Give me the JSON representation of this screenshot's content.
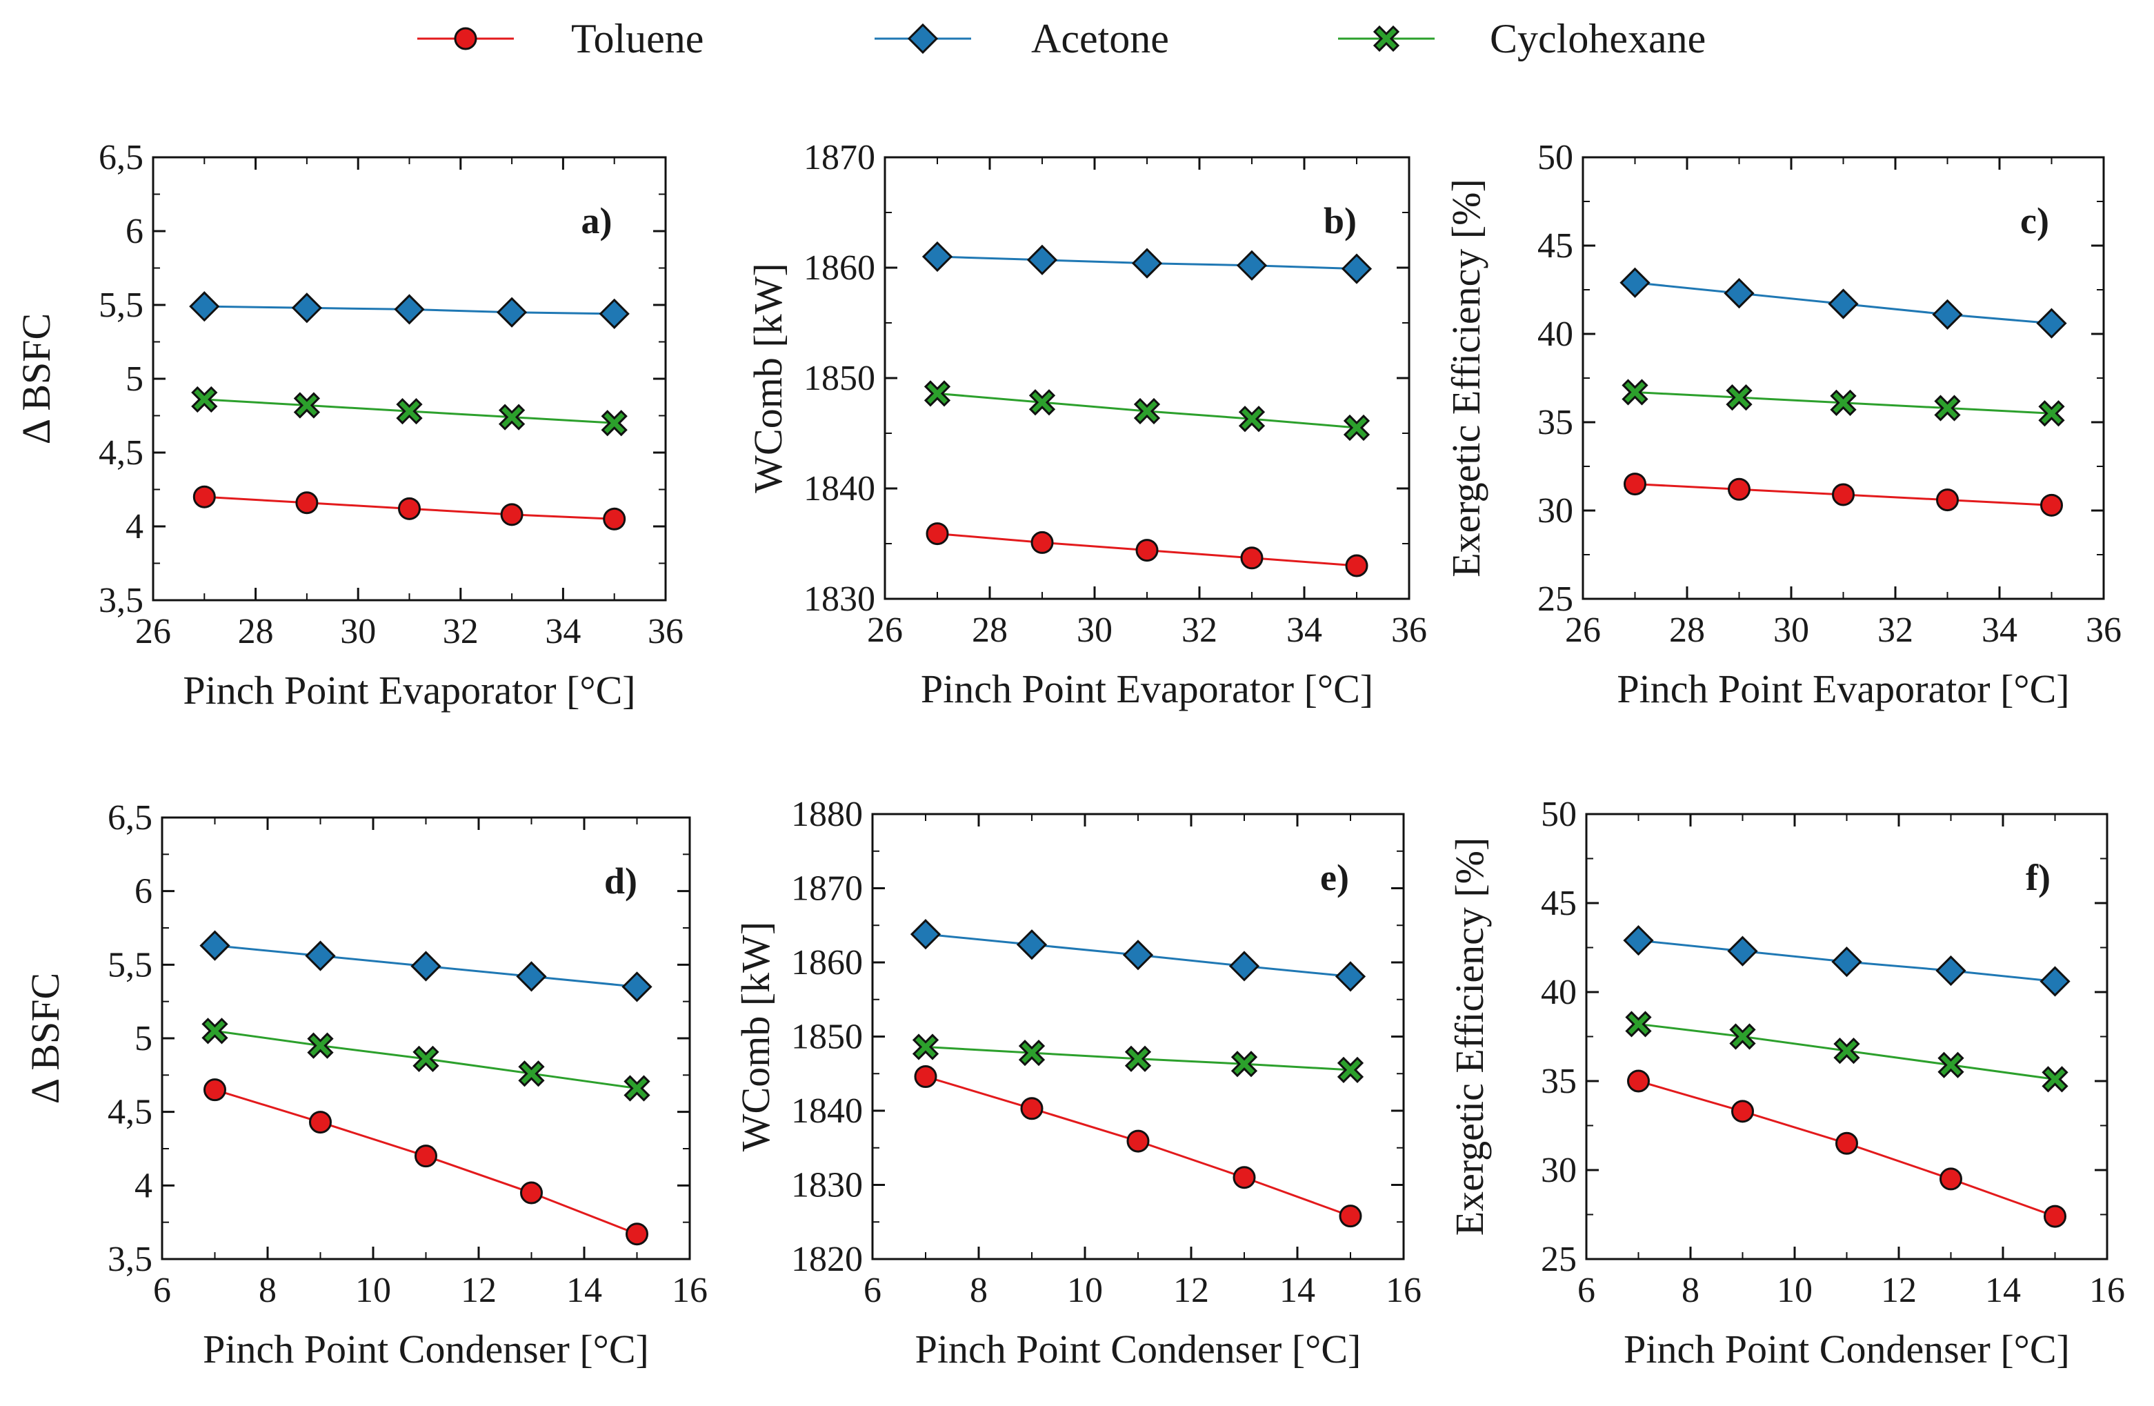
{
  "legend": {
    "placement": "top-center",
    "entries": [
      {
        "name": "Toluene",
        "color": "#e31a1c",
        "marker": "circle"
      },
      {
        "name": "Acetone",
        "color": "#1f78b4",
        "marker": "diamond"
      },
      {
        "name": "Cyclohexane",
        "color": "#2ca02c",
        "marker": "x-cross"
      }
    ]
  },
  "chart_data": [
    {
      "type": "line",
      "panel": "a)",
      "xlabel": "Pinch Point Evaporator [°C]",
      "ylabel": "Δ BSFC",
      "xlim": [
        26,
        36
      ],
      "ylim": [
        3.5,
        6.5
      ],
      "xticks": [
        "26",
        "28",
        "30",
        "32",
        "34",
        "36"
      ],
      "yticks": [
        "3,5",
        "4",
        "4,5",
        "5",
        "5,5",
        "6",
        "6,5"
      ],
      "x": [
        27,
        29,
        31,
        33,
        35
      ],
      "series": [
        {
          "name": "Toluene",
          "values": [
            4.2,
            4.16,
            4.12,
            4.08,
            4.05
          ]
        },
        {
          "name": "Acetone",
          "values": [
            5.49,
            5.48,
            5.47,
            5.45,
            5.44
          ]
        },
        {
          "name": "Cyclohexane",
          "values": [
            4.86,
            4.82,
            4.78,
            4.74,
            4.7
          ]
        }
      ]
    },
    {
      "type": "line",
      "panel": "b)",
      "xlabel": "Pinch Point Evaporator [°C]",
      "ylabel": "WComb [kW]",
      "xlim": [
        26,
        36
      ],
      "ylim": [
        1830,
        1870
      ],
      "xticks": [
        "26",
        "28",
        "30",
        "32",
        "34",
        "36"
      ],
      "yticks": [
        "1830",
        "1840",
        "1850",
        "1860",
        "1870"
      ],
      "x": [
        27,
        29,
        31,
        33,
        35
      ],
      "series": [
        {
          "name": "Toluene",
          "values": [
            1835.9,
            1835.1,
            1834.4,
            1833.7,
            1833.0
          ]
        },
        {
          "name": "Acetone",
          "values": [
            1861.0,
            1860.7,
            1860.4,
            1860.2,
            1859.9
          ]
        },
        {
          "name": "Cyclohexane",
          "values": [
            1848.6,
            1847.8,
            1847.0,
            1846.3,
            1845.5
          ]
        }
      ]
    },
    {
      "type": "line",
      "panel": "c)",
      "xlabel": "Pinch Point Evaporator [°C]",
      "ylabel": "Exergetic Efficiency [%]",
      "xlim": [
        26,
        36
      ],
      "ylim": [
        25,
        50
      ],
      "xticks": [
        "26",
        "28",
        "30",
        "32",
        "34",
        "36"
      ],
      "yticks": [
        "25",
        "30",
        "35",
        "40",
        "45",
        "50"
      ],
      "x": [
        27,
        29,
        31,
        33,
        35
      ],
      "series": [
        {
          "name": "Toluene",
          "values": [
            31.5,
            31.2,
            30.9,
            30.6,
            30.3
          ]
        },
        {
          "name": "Acetone",
          "values": [
            42.9,
            42.3,
            41.7,
            41.1,
            40.6
          ]
        },
        {
          "name": "Cyclohexane",
          "values": [
            36.7,
            36.4,
            36.1,
            35.8,
            35.5
          ]
        }
      ]
    },
    {
      "type": "line",
      "panel": "d)",
      "xlabel": "Pinch Point Condenser [°C]",
      "ylabel": "Δ BSFC",
      "xlim": [
        6,
        16
      ],
      "ylim": [
        3.5,
        6.5
      ],
      "xticks": [
        "6",
        "8",
        "10",
        "12",
        "14",
        "16"
      ],
      "yticks": [
        "3,5",
        "4",
        "4,5",
        "5",
        "5,5",
        "6",
        "6,5"
      ],
      "x": [
        7,
        9,
        11,
        13,
        15
      ],
      "series": [
        {
          "name": "Toluene",
          "values": [
            4.65,
            4.43,
            4.2,
            3.95,
            3.67
          ]
        },
        {
          "name": "Acetone",
          "values": [
            5.63,
            5.56,
            5.49,
            5.42,
            5.35
          ]
        },
        {
          "name": "Cyclohexane",
          "values": [
            5.05,
            4.95,
            4.86,
            4.76,
            4.66
          ]
        }
      ]
    },
    {
      "type": "line",
      "panel": "e)",
      "xlabel": "Pinch Point Condenser [°C]",
      "ylabel": "WComb [kW]",
      "xlim": [
        6,
        16
      ],
      "ylim": [
        1820,
        1880
      ],
      "xticks": [
        "6",
        "8",
        "10",
        "12",
        "14",
        "16"
      ],
      "yticks": [
        "1820",
        "1830",
        "1840",
        "1850",
        "1860",
        "1870",
        "1880"
      ],
      "x": [
        7,
        9,
        11,
        13,
        15
      ],
      "series": [
        {
          "name": "Toluene",
          "values": [
            1844.6,
            1840.3,
            1835.9,
            1831.0,
            1825.8
          ]
        },
        {
          "name": "Acetone",
          "values": [
            1863.8,
            1862.4,
            1861.0,
            1859.5,
            1858.1
          ]
        },
        {
          "name": "Cyclohexane",
          "values": [
            1848.6,
            1847.8,
            1847.0,
            1846.3,
            1845.5
          ]
        }
      ]
    },
    {
      "type": "line",
      "panel": "f)",
      "xlabel": "Pinch Point Condenser [°C]",
      "ylabel": "Exergetic Efficiency [%]",
      "xlim": [
        6,
        16
      ],
      "ylim": [
        25,
        50
      ],
      "xticks": [
        "6",
        "8",
        "10",
        "12",
        "14",
        "16"
      ],
      "yticks": [
        "25",
        "30",
        "35",
        "40",
        "45",
        "50"
      ],
      "x": [
        7,
        9,
        11,
        13,
        15
      ],
      "series": [
        {
          "name": "Toluene",
          "values": [
            35.0,
            33.3,
            31.5,
            29.5,
            27.4
          ]
        },
        {
          "name": "Acetone",
          "values": [
            42.9,
            42.3,
            41.7,
            41.2,
            40.6
          ]
        },
        {
          "name": "Cyclohexane",
          "values": [
            38.2,
            37.5,
            36.7,
            35.9,
            35.1
          ]
        }
      ]
    }
  ]
}
